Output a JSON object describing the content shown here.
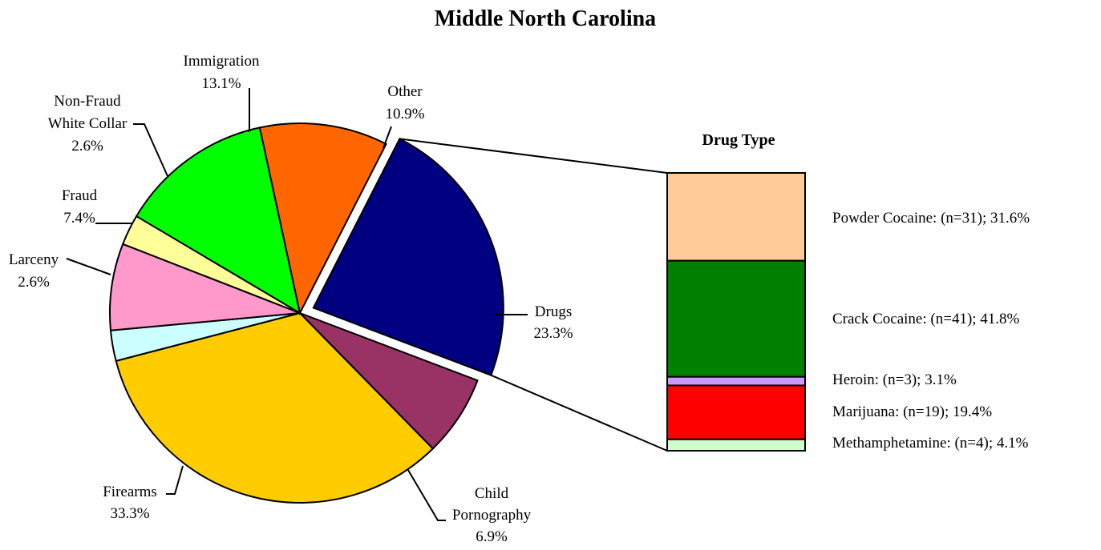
{
  "chart_data": [
    {
      "type": "pie",
      "title": "Middle North Carolina",
      "slices": [
        {
          "label": "Drugs",
          "value": 23.3,
          "display": "23.3%",
          "color": "#000080",
          "exploded": true
        },
        {
          "label": "Child Pornography",
          "value": 6.9,
          "display": "6.9%",
          "color": "#993366"
        },
        {
          "label": "Firearms",
          "value": 33.3,
          "display": "33.3%",
          "color": "#ffcc00"
        },
        {
          "label": "Larceny",
          "value": 2.6,
          "display": "2.6%",
          "color": "#ccffff"
        },
        {
          "label": "Fraud",
          "value": 7.4,
          "display": "7.4%",
          "color": "#ff99cc"
        },
        {
          "label": "Non-Fraud White Collar",
          "value": 2.6,
          "display": "2.6%",
          "color": "#ffff99"
        },
        {
          "label": "Immigration",
          "value": 13.1,
          "display": "13.1%",
          "color": "#00ff00"
        },
        {
          "label": "Other",
          "value": 10.9,
          "display": "10.9%",
          "color": "#ff6600"
        }
      ]
    },
    {
      "type": "bar",
      "stacked": true,
      "title": "Drug Type",
      "series": [
        {
          "name": "Powder Cocaine",
          "n": 31,
          "value": 31.6,
          "color": "#ffcc99",
          "label": "Powder Cocaine:  (n=31); 31.6%"
        },
        {
          "name": "Crack Cocaine",
          "n": 41,
          "value": 41.8,
          "color": "#008000",
          "label": "Crack Cocaine:  (n=41); 41.8%"
        },
        {
          "name": "Heroin",
          "n": 3,
          "value": 3.1,
          "color": "#cc99ff",
          "label": "Heroin:  (n=3); 3.1%"
        },
        {
          "name": "Marijuana",
          "n": 19,
          "value": 19.4,
          "color": "#ff0000",
          "label": "Marijuana:  (n=19); 19.4%"
        },
        {
          "name": "Methamphetamine",
          "n": 4,
          "value": 4.1,
          "color": "#ccffcc",
          "label": "Methamphetamine:  (n=4); 4.1%"
        }
      ]
    }
  ]
}
